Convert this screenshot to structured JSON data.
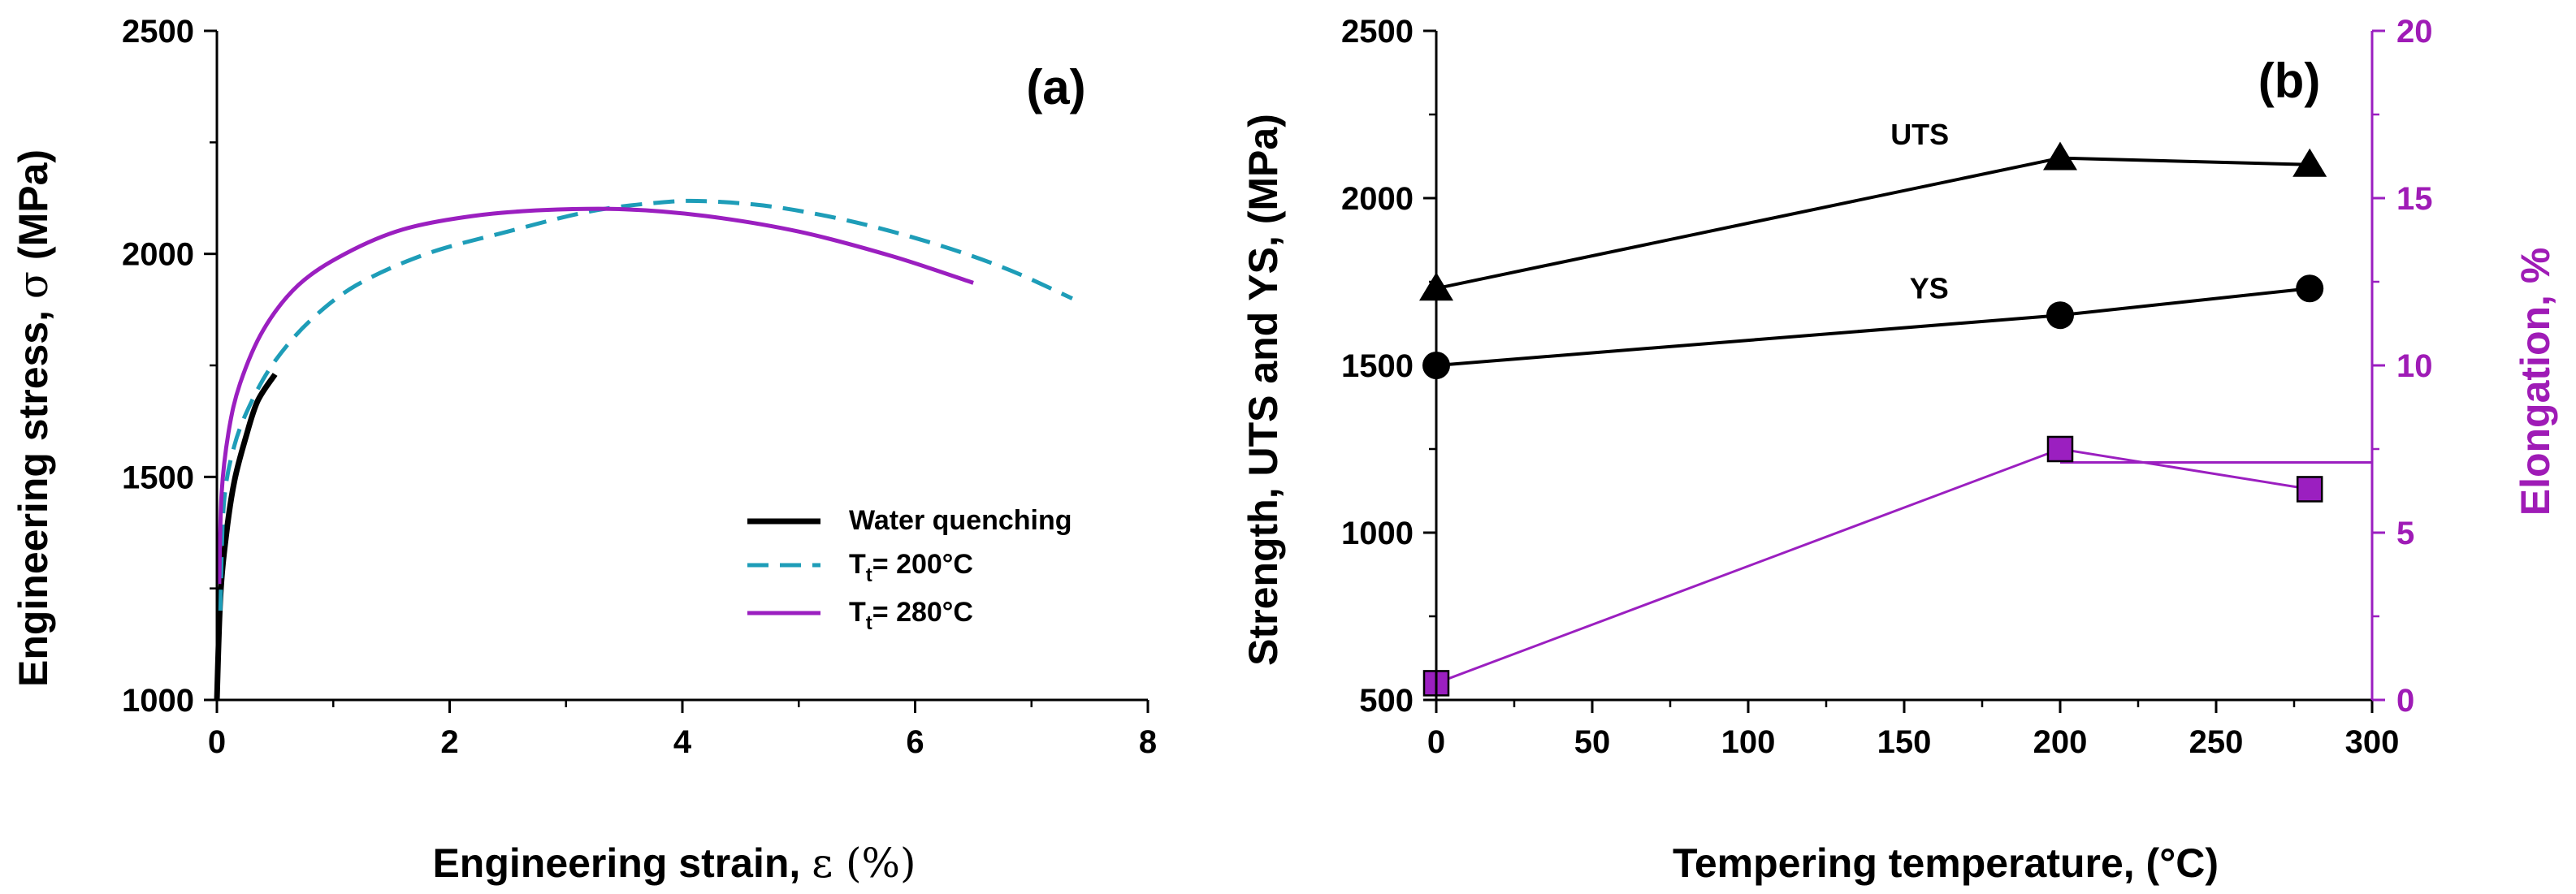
{
  "chart_data": [
    {
      "panel_label": "(a)",
      "type": "line",
      "title": "",
      "xlabel_prefix": "Engineering strain, ",
      "xlabel_symbol": "ε",
      "xlabel_suffix": " (%)",
      "ylabel_prefix": "Engineering stress, ",
      "ylabel_symbol": "σ",
      "ylabel_suffix": " (MPa)",
      "xlim": [
        0,
        8
      ],
      "ylim": [
        1000,
        2500
      ],
      "x_ticks": [
        "0",
        "2",
        "4",
        "6",
        "8"
      ],
      "y_ticks": [
        "1000",
        "1500",
        "2000",
        "2500"
      ],
      "legend_position": "bottom-right",
      "series": [
        {
          "name": "Water quenching",
          "legend_main": "Water quenching",
          "legend_sub": "",
          "legend_tail": "",
          "color": "#000000",
          "dash": "solid",
          "points": [
            [
              0,
              1000
            ],
            [
              0.03,
              1230
            ],
            [
              0.08,
              1370
            ],
            [
              0.15,
              1490
            ],
            [
              0.25,
              1590
            ],
            [
              0.35,
              1670
            ],
            [
              0.5,
              1730
            ]
          ]
        },
        {
          "name": "Tt= 200°C",
          "legend_main": "T",
          "legend_sub": "t",
          "legend_tail": "= 200°C",
          "color": "#1e9db8",
          "dash": "dashed",
          "points": [
            [
              0.03,
              1200
            ],
            [
              0.06,
              1440
            ],
            [
              0.15,
              1570
            ],
            [
              0.3,
              1670
            ],
            [
              0.5,
              1760
            ],
            [
              0.8,
              1850
            ],
            [
              1.2,
              1930
            ],
            [
              1.8,
              2000
            ],
            [
              2.5,
              2050
            ],
            [
              3.2,
              2095
            ],
            [
              3.8,
              2115
            ],
            [
              4.2,
              2118
            ],
            [
              4.8,
              2105
            ],
            [
              5.5,
              2070
            ],
            [
              6.2,
              2020
            ],
            [
              6.8,
              1965
            ],
            [
              7.35,
              1900
            ]
          ]
        },
        {
          "name": "Tt= 280°C",
          "legend_main": "T",
          "legend_sub": "t",
          "legend_tail": "= 280°C",
          "color": "#9b1fc0",
          "dash": "solid",
          "points": [
            [
              0.02,
              1260
            ],
            [
              0.04,
              1460
            ],
            [
              0.1,
              1600
            ],
            [
              0.2,
              1710
            ],
            [
              0.4,
              1830
            ],
            [
              0.7,
              1930
            ],
            [
              1.1,
              2000
            ],
            [
              1.6,
              2055
            ],
            [
              2.2,
              2085
            ],
            [
              2.8,
              2098
            ],
            [
              3.5,
              2100
            ],
            [
              4.2,
              2085
            ],
            [
              5.0,
              2050
            ],
            [
              5.8,
              1995
            ],
            [
              6.5,
              1935
            ]
          ]
        }
      ]
    },
    {
      "panel_label": "(b)",
      "type": "line",
      "title": "",
      "xlabel": "Tempering temperature, (°C)",
      "ylabel": "Strength, UTS and YS, (MPa)",
      "y2label": "Elongation, %",
      "xlim": [
        0,
        300
      ],
      "ylim": [
        500,
        2500
      ],
      "y2lim": [
        0,
        20
      ],
      "x_ticks": [
        "0",
        "50",
        "100",
        "150",
        "200",
        "250",
        "300"
      ],
      "y_ticks": [
        "500",
        "1000",
        "1500",
        "2000",
        "2500"
      ],
      "y2_ticks": [
        "0",
        "5",
        "10",
        "15",
        "20"
      ],
      "annotations": [
        {
          "text": "UTS",
          "x": 155,
          "y": 2160
        },
        {
          "text": "YS",
          "x": 158,
          "y": 1700
        }
      ],
      "series": [
        {
          "name": "UTS",
          "axis": "left",
          "marker": "triangle",
          "color": "#000000",
          "x": [
            0,
            200,
            280
          ],
          "values": [
            1730,
            2120,
            2100
          ]
        },
        {
          "name": "YS",
          "axis": "left",
          "marker": "circle",
          "color": "#000000",
          "x": [
            0,
            200,
            280
          ],
          "values": [
            1500,
            1650,
            1730
          ]
        },
        {
          "name": "Elongation",
          "axis": "right",
          "marker": "square",
          "color": "#9b1fc0",
          "x": [
            0,
            200,
            280
          ],
          "values": [
            0.5,
            7.5,
            6.3
          ],
          "tail_value": 7.1
        }
      ]
    }
  ]
}
